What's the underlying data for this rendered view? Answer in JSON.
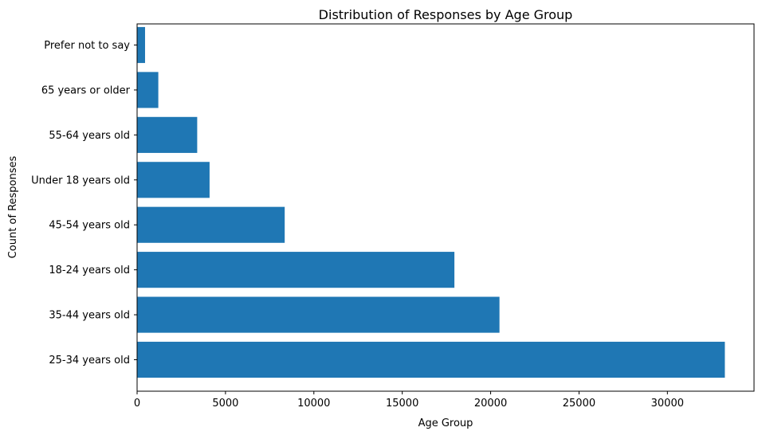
{
  "chart_data": {
    "type": "bar",
    "orientation": "horizontal",
    "title": "Distribution of Responses by Age Group",
    "xlabel": "Age Group",
    "ylabel": "Count of Responses",
    "categories": [
      "25-34 years old",
      "35-44 years old",
      "18-24 years old",
      "45-54 years old",
      "Under 18 years old",
      "55-64 years old",
      "65 years or older",
      "Prefer not to say"
    ],
    "values": [
      33250,
      20500,
      17950,
      8350,
      4100,
      3400,
      1200,
      450
    ],
    "xlim": [
      0,
      34900
    ],
    "xticks": [
      0,
      5000,
      10000,
      15000,
      20000,
      25000,
      30000
    ],
    "grid": false,
    "bar_color": "#1f77b4"
  }
}
